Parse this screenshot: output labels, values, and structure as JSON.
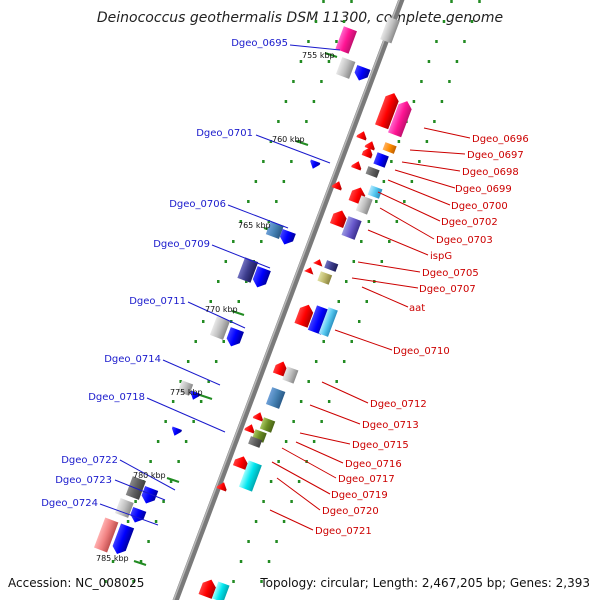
{
  "title": "Deinococcus geothermalis DSM 11300, complete genome",
  "accession": "Accession: NC_008025",
  "topology": "Topology: circular; Length: 2,467,205 bp; Genes: 2,393",
  "kbp_labels": [
    "755 kbp",
    "760 kbp",
    "765 kbp",
    "770 kbp",
    "775 kbp",
    "780 kbp",
    "785 kbp"
  ],
  "left_genes": [
    "Dgeo_0695",
    "Dgeo_0701",
    "Dgeo_0706",
    "Dgeo_0709",
    "Dgeo_0711",
    "Dgeo_0714",
    "Dgeo_0718",
    "Dgeo_0722",
    "Dgeo_0723",
    "Dgeo_0724"
  ],
  "right_genes": [
    "Dgeo_0696",
    "Dgeo_0697",
    "Dgeo_0698",
    "Dgeo_0699",
    "Dgeo_0700",
    "Dgeo_0702",
    "Dgeo_0703",
    "ispG",
    "Dgeo_0705",
    "Dgeo_0707",
    "aat",
    "Dgeo_0710",
    "Dgeo_0712",
    "Dgeo_0713",
    "Dgeo_0715",
    "Dgeo_0716",
    "Dgeo_0717",
    "Dgeo_0719",
    "Dgeo_0720",
    "Dgeo_0721"
  ],
  "colors": {
    "left_label": "#1a1acc",
    "right_label": "#cc0000",
    "backbone": "#808080",
    "tick": "#228b22",
    "forward": "#0000ff",
    "reverse": "#ff0000"
  }
}
